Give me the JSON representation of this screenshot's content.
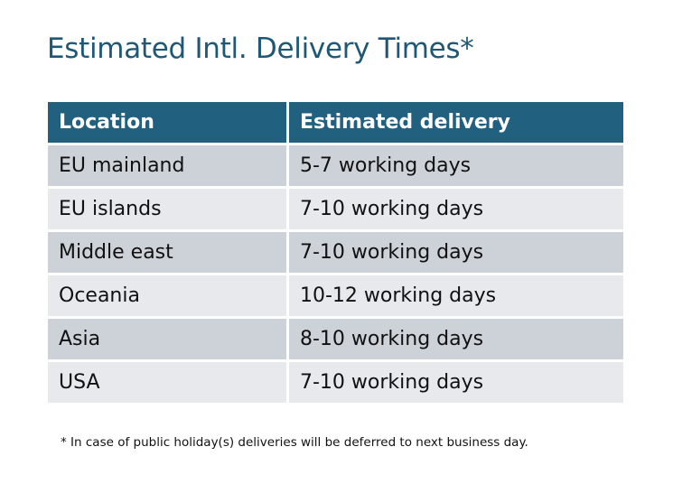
{
  "title": "Estimated Intl. Delivery Times*",
  "table": {
    "headers": [
      "Location",
      "Estimated delivery"
    ],
    "rows": [
      [
        "EU mainland",
        "5-7 working days"
      ],
      [
        "EU islands",
        "7-10 working days"
      ],
      [
        "Middle east",
        "7-10 working days"
      ],
      [
        "Oceania",
        "10-12 working days"
      ],
      [
        "Asia",
        "8-10 working days"
      ],
      [
        "USA",
        "7-10 working days"
      ]
    ]
  },
  "footnote": "* In case of public holiday(s) deliveries will be deferred to next business day.",
  "colors": {
    "header": "#21617f",
    "title": "#1f5876",
    "row_dark": "#cdd2d9",
    "row_light": "#e7e9ec"
  }
}
